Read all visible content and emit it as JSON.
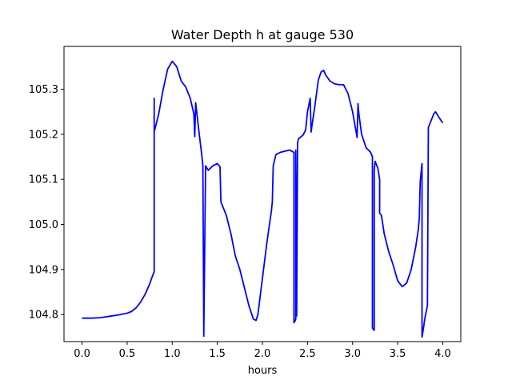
{
  "chart_data": {
    "type": "line",
    "title": "Water Depth h at gauge 530",
    "xlabel": "hours",
    "ylabel": "",
    "xlim": [
      -0.2,
      4.2
    ],
    "ylim": [
      104.74,
      105.395
    ],
    "grid": false,
    "x_ticks": [
      0.0,
      0.5,
      1.0,
      1.5,
      2.0,
      2.5,
      3.0,
      3.5,
      4.0
    ],
    "x_tick_labels": [
      "0.0",
      "0.5",
      "1.0",
      "1.5",
      "2.0",
      "2.5",
      "3.0",
      "3.5",
      "4.0"
    ],
    "y_ticks": [
      104.8,
      104.9,
      105.0,
      105.1,
      105.2,
      105.3
    ],
    "y_tick_labels": [
      "104.8",
      "104.9",
      "105.0",
      "105.1",
      "105.2",
      "105.3"
    ],
    "series": [
      {
        "color": "#0000ff",
        "x": [
          0.0,
          0.1,
          0.2,
          0.3,
          0.4,
          0.5,
          0.55,
          0.6,
          0.65,
          0.7,
          0.75,
          0.78,
          0.8,
          0.8,
          0.8,
          0.85,
          0.9,
          0.95,
          1.0,
          1.05,
          1.1,
          1.15,
          1.2,
          1.24,
          1.25,
          1.26,
          1.3,
          1.33,
          1.34,
          1.35,
          1.35,
          1.37,
          1.4,
          1.45,
          1.5,
          1.52,
          1.53,
          1.54,
          1.6,
          1.65,
          1.7,
          1.75,
          1.8,
          1.85,
          1.9,
          1.93,
          1.95,
          2.0,
          2.05,
          2.1,
          2.11,
          2.12,
          2.15,
          2.2,
          2.3,
          2.35,
          2.35,
          2.36,
          2.37,
          2.37,
          2.38,
          2.39,
          2.4,
          2.45,
          2.48,
          2.5,
          2.53,
          2.54,
          2.55,
          2.58,
          2.62,
          2.65,
          2.68,
          2.7,
          2.75,
          2.8,
          2.85,
          2.9,
          2.95,
          3.0,
          3.05,
          3.06,
          3.07,
          3.1,
          3.15,
          3.2,
          3.22,
          3.22,
          3.24,
          3.24,
          3.25,
          3.28,
          3.3,
          3.3,
          3.32,
          3.35,
          3.4,
          3.45,
          3.5,
          3.55,
          3.6,
          3.65,
          3.7,
          3.73,
          3.74,
          3.75,
          3.77,
          3.77,
          3.79,
          3.8,
          3.83,
          3.84,
          3.84,
          3.87,
          3.9,
          3.92,
          3.95,
          4.0
        ],
        "y": [
          104.792,
          104.792,
          104.793,
          104.796,
          104.799,
          104.803,
          104.807,
          104.815,
          104.828,
          104.845,
          104.868,
          104.885,
          104.895,
          105.28,
          105.205,
          105.245,
          105.3,
          105.345,
          105.362,
          105.35,
          105.318,
          105.305,
          105.28,
          105.245,
          105.195,
          105.27,
          105.2,
          105.15,
          105.13,
          104.76,
          104.752,
          105.13,
          105.12,
          105.13,
          105.135,
          105.13,
          105.128,
          105.05,
          105.02,
          104.98,
          104.93,
          104.9,
          104.86,
          104.82,
          104.79,
          104.787,
          104.8,
          104.88,
          104.96,
          105.03,
          105.05,
          105.13,
          105.155,
          105.16,
          105.165,
          105.16,
          104.782,
          104.785,
          104.79,
          105.165,
          104.797,
          105.18,
          105.19,
          105.198,
          105.21,
          105.25,
          105.28,
          105.205,
          105.22,
          105.26,
          105.32,
          105.338,
          105.342,
          105.332,
          105.318,
          105.312,
          105.31,
          105.31,
          105.29,
          105.25,
          105.193,
          105.268,
          105.245,
          105.2,
          105.17,
          105.16,
          105.15,
          104.77,
          104.765,
          105.12,
          105.14,
          105.125,
          105.1,
          105.025,
          105.02,
          104.98,
          104.94,
          104.91,
          104.875,
          104.862,
          104.87,
          104.9,
          104.95,
          104.99,
          105.015,
          105.095,
          105.135,
          104.75,
          104.775,
          104.79,
          104.82,
          105.205,
          105.215,
          105.23,
          105.245,
          105.25,
          105.24,
          105.225
        ]
      }
    ]
  }
}
